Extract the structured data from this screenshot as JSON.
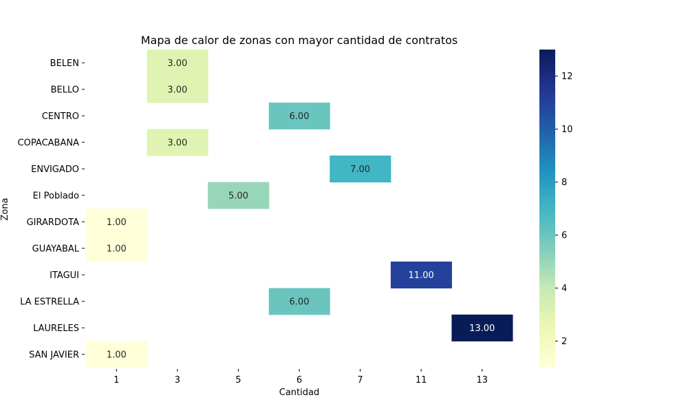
{
  "chart_data": {
    "type": "heatmap",
    "title": "Mapa de calor de zonas con mayor cantidad de contratos",
    "xlabel": "Cantidad",
    "ylabel": "Zona",
    "x_categories": [
      "1",
      "3",
      "5",
      "6",
      "7",
      "11",
      "13"
    ],
    "y_categories": [
      "BELEN",
      "BELLO",
      "CENTRO",
      "COPACABANA",
      "ENVIGADO",
      "El Poblado",
      "GIRARDOTA",
      "GUAYABAL",
      "ITAGUI",
      "LA ESTRELLA",
      "LAURELES",
      "SAN JAVIER"
    ],
    "cells": [
      {
        "zone": "BELEN",
        "x": "3",
        "value": 3,
        "label": "3.00"
      },
      {
        "zone": "BELLO",
        "x": "3",
        "value": 3,
        "label": "3.00"
      },
      {
        "zone": "CENTRO",
        "x": "6",
        "value": 6,
        "label": "6.00"
      },
      {
        "zone": "COPACABANA",
        "x": "3",
        "value": 3,
        "label": "3.00"
      },
      {
        "zone": "ENVIGADO",
        "x": "7",
        "value": 7,
        "label": "7.00"
      },
      {
        "zone": "El Poblado",
        "x": "5",
        "value": 5,
        "label": "5.00"
      },
      {
        "zone": "GIRARDOTA",
        "x": "1",
        "value": 1,
        "label": "1.00"
      },
      {
        "zone": "GUAYABAL",
        "x": "1",
        "value": 1,
        "label": "1.00"
      },
      {
        "zone": "ITAGUI",
        "x": "11",
        "value": 11,
        "label": "11.00"
      },
      {
        "zone": "LA ESTRELLA",
        "x": "6",
        "value": 6,
        "label": "6.00"
      },
      {
        "zone": "LAURELES",
        "x": "13",
        "value": 13,
        "label": "13.00"
      },
      {
        "zone": "SAN JAVIER",
        "x": "1",
        "value": 1,
        "label": "1.00"
      }
    ],
    "colorbar": {
      "colormap": "YlGnBu",
      "range": [
        1,
        13
      ],
      "ticks": [
        "2",
        "4",
        "6",
        "8",
        "10",
        "12"
      ]
    },
    "grid": false,
    "legend": "colorbar-right"
  }
}
